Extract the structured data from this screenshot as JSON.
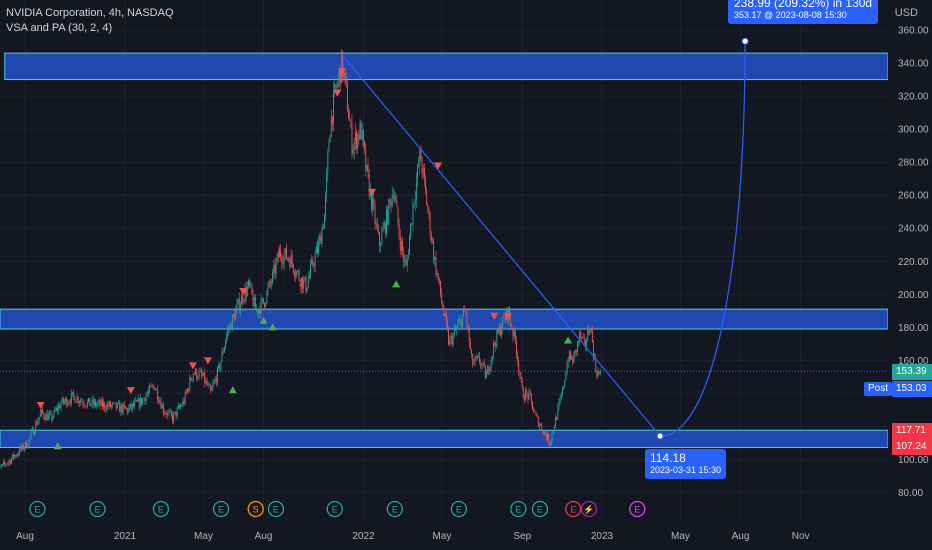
{
  "legend": {
    "title": "NVIDIA Corporation, 4h, NASDAQ",
    "indicator": "VSA and PA (30, 2, 4)"
  },
  "currency": "USD",
  "colors": {
    "background": "#131722",
    "up": "#26a69a",
    "down": "#ef5350",
    "zone_fill": "#2962ff",
    "zone_border": "#4dd0e1",
    "projection": "#2962ff",
    "grid": "#1e222d",
    "axis_text": "#b2b5be",
    "current_price": "#26a69a",
    "alert": "#f23645"
  },
  "chart_data": {
    "type": "candlestick",
    "symbol": "NVDA",
    "timeframe": "4h",
    "y_axis": {
      "ticks": [
        80,
        100,
        120,
        140,
        160,
        180,
        200,
        220,
        240,
        260,
        280,
        300,
        320,
        340,
        360
      ],
      "tick_labels": [
        "80.00",
        "100.00",
        "120.00",
        "140.00",
        "160.00",
        "180.00",
        "200.00",
        "220.00",
        "240.00",
        "260.00",
        "280.00",
        "300.00",
        "320.00",
        "340.00",
        "360.00"
      ]
    },
    "x_axis": {
      "tick_labels": [
        "Aug",
        "2021",
        "May",
        "Aug",
        "2022",
        "May",
        "Sep",
        "2023",
        "May",
        "Aug",
        "Nov"
      ],
      "tick_dates": [
        "2020-08",
        "2021-01",
        "2021-05",
        "2021-08",
        "2022-01",
        "2022-05",
        "2022-09",
        "2023-01",
        "2023-05",
        "2023-08",
        "2023-11"
      ]
    },
    "price_path": [
      [
        "2020-06-15",
        92
      ],
      [
        "2020-07-10",
        100
      ],
      [
        "2020-08-05",
        110
      ],
      [
        "2020-08-25",
        128
      ],
      [
        "2020-09-10",
        125
      ],
      [
        "2020-09-25",
        134
      ],
      [
        "2020-10-15",
        138
      ],
      [
        "2020-11-05",
        134
      ],
      [
        "2020-11-25",
        133
      ],
      [
        "2020-12-15",
        132
      ],
      [
        "2021-01-05",
        130
      ],
      [
        "2021-01-25",
        135
      ],
      [
        "2021-02-15",
        145
      ],
      [
        "2021-03-01",
        130
      ],
      [
        "2021-03-15",
        125
      ],
      [
        "2021-04-01",
        135
      ],
      [
        "2021-04-15",
        153
      ],
      [
        "2021-04-30",
        150
      ],
      [
        "2021-05-12",
        140
      ],
      [
        "2021-05-25",
        155
      ],
      [
        "2021-06-05",
        175
      ],
      [
        "2021-06-20",
        190
      ],
      [
        "2021-07-01",
        200
      ],
      [
        "2021-07-10",
        205
      ],
      [
        "2021-07-20",
        190
      ],
      [
        "2021-08-01",
        195
      ],
      [
        "2021-08-15",
        210
      ],
      [
        "2021-08-25",
        225
      ],
      [
        "2021-09-10",
        222
      ],
      [
        "2021-09-25",
        210
      ],
      [
        "2021-10-05",
        205
      ],
      [
        "2021-10-15",
        218
      ],
      [
        "2021-10-25",
        230
      ],
      [
        "2021-11-03",
        250
      ],
      [
        "2021-11-10",
        300
      ],
      [
        "2021-11-18",
        320
      ],
      [
        "2021-11-29",
        340
      ],
      [
        "2021-12-06",
        320
      ],
      [
        "2021-12-15",
        290
      ],
      [
        "2021-12-28",
        300
      ],
      [
        "2022-01-05",
        275
      ],
      [
        "2022-01-14",
        255
      ],
      [
        "2022-01-25",
        230
      ],
      [
        "2022-02-05",
        245
      ],
      [
        "2022-02-16",
        265
      ],
      [
        "2022-02-25",
        235
      ],
      [
        "2022-03-07",
        215
      ],
      [
        "2022-03-18",
        255
      ],
      [
        "2022-03-29",
        285
      ],
      [
        "2022-04-08",
        255
      ],
      [
        "2022-04-20",
        220
      ],
      [
        "2022-05-01",
        195
      ],
      [
        "2022-05-12",
        170
      ],
      [
        "2022-05-25",
        180
      ],
      [
        "2022-06-06",
        190
      ],
      [
        "2022-06-16",
        158
      ],
      [
        "2022-06-28",
        160
      ],
      [
        "2022-07-08",
        150
      ],
      [
        "2022-07-20",
        170
      ],
      [
        "2022-08-01",
        182
      ],
      [
        "2022-08-10",
        190
      ],
      [
        "2022-08-22",
        170
      ],
      [
        "2022-09-01",
        140
      ],
      [
        "2022-09-12",
        138
      ],
      [
        "2022-09-22",
        125
      ],
      [
        "2022-10-03",
        118
      ],
      [
        "2022-10-13",
        110
      ],
      [
        "2022-10-22",
        124
      ],
      [
        "2022-11-01",
        140
      ],
      [
        "2022-11-10",
        162
      ],
      [
        "2022-11-18",
        160
      ],
      [
        "2022-11-28",
        175
      ],
      [
        "2022-12-05",
        168
      ],
      [
        "2022-12-14",
        182
      ],
      [
        "2022-12-22",
        155
      ],
      [
        "2022-12-30",
        150
      ]
    ],
    "current_price": {
      "value": 153.39,
      "label": "153.39"
    },
    "post_price": {
      "value": 153.03,
      "label": "153.03",
      "tag": "Post"
    },
    "alert_prices": [
      {
        "value": 117.71,
        "label": "117.71"
      },
      {
        "value": 107.24,
        "label": "107.24"
      }
    ],
    "zones": [
      {
        "from": 330,
        "to": 346,
        "start": "2020-07-01"
      },
      {
        "from": 179,
        "to": 191,
        "start": "2020-06-01"
      },
      {
        "from": 107.24,
        "to": 117.71,
        "start": "2020-06-01"
      }
    ],
    "trendline": {
      "from": [
        "2021-11-29",
        345
      ],
      "to": [
        "2023-03-31",
        114.18
      ]
    },
    "projection": {
      "from": [
        "2023-03-31",
        114.18
      ],
      "to": [
        "2023-08-08",
        353.17
      ]
    },
    "callouts": {
      "low": {
        "price": "114.18",
        "datetime": "2023-03-31  15:30"
      },
      "target": {
        "summary": "238.99 (209.32%) in 130d",
        "price_time": "353.17 @ 2023-08-08  15:30"
      }
    },
    "vsa_markers": [
      {
        "date": "2020-08-25",
        "price": 133,
        "dir": "down"
      },
      {
        "date": "2020-09-20",
        "price": 108,
        "dir": "up"
      },
      {
        "date": "2021-01-10",
        "price": 142,
        "dir": "down"
      },
      {
        "date": "2021-04-15",
        "price": 157,
        "dir": "down"
      },
      {
        "date": "2021-05-08",
        "price": 160,
        "dir": "down"
      },
      {
        "date": "2021-06-15",
        "price": 142,
        "dir": "up"
      },
      {
        "date": "2021-07-01",
        "price": 202,
        "dir": "down"
      },
      {
        "date": "2021-08-01",
        "price": 184,
        "dir": "up"
      },
      {
        "date": "2021-08-15",
        "price": 180,
        "dir": "up"
      },
      {
        "date": "2021-11-29",
        "price": 335,
        "dir": "down"
      },
      {
        "date": "2021-11-22",
        "price": 322,
        "dir": "down"
      },
      {
        "date": "2022-01-14",
        "price": 262,
        "dir": "down"
      },
      {
        "date": "2022-02-20",
        "price": 206,
        "dir": "up"
      },
      {
        "date": "2022-04-25",
        "price": 278,
        "dir": "down"
      },
      {
        "date": "2022-07-20",
        "price": 187,
        "dir": "down"
      },
      {
        "date": "2022-08-10",
        "price": 187,
        "dir": "down"
      },
      {
        "date": "2022-11-10",
        "price": 172,
        "dir": "up"
      }
    ],
    "event_markers": [
      {
        "date": "2020-08-20",
        "letter": "E",
        "color": "#26a69a"
      },
      {
        "date": "2020-11-20",
        "letter": "E",
        "color": "#26a69a"
      },
      {
        "date": "2021-02-25",
        "letter": "E",
        "color": "#26a69a"
      },
      {
        "date": "2021-05-28",
        "letter": "E",
        "color": "#26a69a"
      },
      {
        "date": "2021-07-20",
        "letter": "S",
        "color": "#ff9800"
      },
      {
        "date": "2021-08-20",
        "letter": "E",
        "color": "#26a69a"
      },
      {
        "date": "2021-11-18",
        "letter": "E",
        "color": "#26a69a"
      },
      {
        "date": "2022-02-18",
        "letter": "E",
        "color": "#26a69a"
      },
      {
        "date": "2022-05-27",
        "letter": "E",
        "color": "#26a69a"
      },
      {
        "date": "2022-08-26",
        "letter": "E",
        "color": "#26a69a"
      },
      {
        "date": "2022-09-28",
        "letter": "E",
        "color": "#26a69a"
      },
      {
        "date": "2022-11-18",
        "letter": "E",
        "color": "#f23645"
      },
      {
        "date": "2022-12-12",
        "letter": "⚡",
        "color": "#9c27b0"
      },
      {
        "date": "2023-02-24",
        "letter": "E",
        "color": "#e040fb"
      }
    ]
  }
}
